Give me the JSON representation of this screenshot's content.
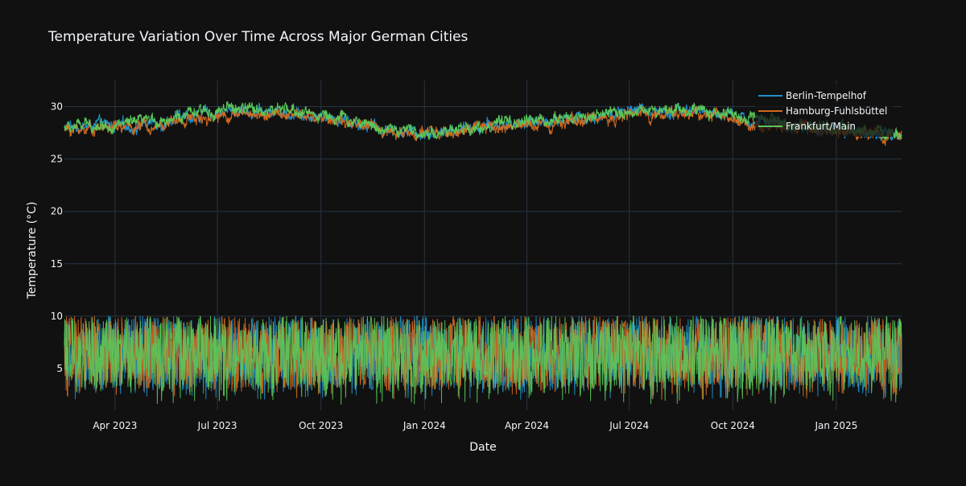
{
  "chart_data": {
    "type": "line",
    "title": "Temperature Variation Over Time Across Major German Cities",
    "xlabel": "Date",
    "ylabel": "Temperature (°C)",
    "x_range": [
      "2023-02-15",
      "2025-02-28"
    ],
    "ylim": [
      1,
      32.5
    ],
    "x_ticks": [
      {
        "date": "2023-04-01",
        "label": "Apr 2023"
      },
      {
        "date": "2023-07-01",
        "label": "Jul 2023"
      },
      {
        "date": "2023-10-01",
        "label": "Oct 2023"
      },
      {
        "date": "2024-01-01",
        "label": "Jan 2024"
      },
      {
        "date": "2024-04-01",
        "label": "Apr 2024"
      },
      {
        "date": "2024-07-01",
        "label": "Jul 2024"
      },
      {
        "date": "2024-10-01",
        "label": "Oct 2024"
      },
      {
        "date": "2025-01-01",
        "label": "Jan 2025"
      }
    ],
    "y_ticks": [
      5,
      10,
      15,
      20,
      25,
      30
    ],
    "grid": true,
    "legend_position": "top-right",
    "colors": {
      "background": "#111111",
      "grid": "#283442",
      "text": "#f2f5fa"
    },
    "series": [
      {
        "name": "Berlin-Tempelhof",
        "color": "#1f8fc9",
        "upper_band_description": "approx 27-30.5",
        "upper_band": [
          [
            "2023-02-15",
            28.0
          ],
          [
            "2023-03-15",
            28.2
          ],
          [
            "2023-04-15",
            28.1
          ],
          [
            "2023-05-15",
            28.6
          ],
          [
            "2023-06-15",
            29.2
          ],
          [
            "2023-07-15",
            29.6
          ],
          [
            "2023-08-15",
            29.5
          ],
          [
            "2023-09-15",
            29.4
          ],
          [
            "2023-10-15",
            28.9
          ],
          [
            "2023-11-15",
            28.1
          ],
          [
            "2023-12-15",
            27.6
          ],
          [
            "2024-01-15",
            27.5
          ],
          [
            "2024-02-15",
            28.0
          ],
          [
            "2024-03-15",
            28.3
          ],
          [
            "2024-04-15",
            28.6
          ],
          [
            "2024-05-15",
            28.9
          ],
          [
            "2024-06-15",
            29.2
          ],
          [
            "2024-07-15",
            29.6
          ],
          [
            "2024-08-15",
            29.7
          ],
          [
            "2024-09-15",
            29.4
          ],
          [
            "2024-10-15",
            28.6
          ],
          [
            "2024-11-15",
            28.2
          ],
          [
            "2024-12-15",
            27.9
          ],
          [
            "2025-01-15",
            27.7
          ],
          [
            "2025-02-28",
            27.3
          ]
        ],
        "lower_band_range": [
          2,
          10
        ]
      },
      {
        "name": "Hamburg-Fuhlsbüttel",
        "color": "#d2691e",
        "upper_band": [
          [
            "2023-02-15",
            27.8
          ],
          [
            "2023-03-15",
            28.0
          ],
          [
            "2023-04-15",
            28.0
          ],
          [
            "2023-05-15",
            28.4
          ],
          [
            "2023-06-15",
            29.0
          ],
          [
            "2023-07-15",
            29.3
          ],
          [
            "2023-08-15",
            29.3
          ],
          [
            "2023-09-15",
            29.1
          ],
          [
            "2023-10-15",
            28.7
          ],
          [
            "2023-11-15",
            28.0
          ],
          [
            "2023-12-15",
            27.5
          ],
          [
            "2024-01-15",
            27.4
          ],
          [
            "2024-02-15",
            27.9
          ],
          [
            "2024-03-15",
            28.1
          ],
          [
            "2024-04-15",
            28.4
          ],
          [
            "2024-05-15",
            28.7
          ],
          [
            "2024-06-15",
            29.0
          ],
          [
            "2024-07-15",
            29.3
          ],
          [
            "2024-08-15",
            29.4
          ],
          [
            "2024-09-15",
            29.2
          ],
          [
            "2024-10-15",
            28.4
          ],
          [
            "2024-11-15",
            28.0
          ],
          [
            "2024-12-15",
            27.8
          ],
          [
            "2025-01-15",
            27.6
          ],
          [
            "2025-02-28",
            27.2
          ]
        ],
        "lower_band_range": [
          2,
          10
        ]
      },
      {
        "name": "Frankfurt/Main",
        "color": "#5ac85a",
        "upper_band": [
          [
            "2023-02-15",
            28.0
          ],
          [
            "2023-03-15",
            28.3
          ],
          [
            "2023-04-15",
            28.3
          ],
          [
            "2023-05-15",
            28.8
          ],
          [
            "2023-06-15",
            29.4
          ],
          [
            "2023-07-15",
            29.8
          ],
          [
            "2023-08-15",
            29.7
          ],
          [
            "2023-09-15",
            29.5
          ],
          [
            "2023-10-15",
            29.0
          ],
          [
            "2023-11-15",
            28.2
          ],
          [
            "2023-12-15",
            27.6
          ],
          [
            "2024-01-15",
            27.5
          ],
          [
            "2024-02-15",
            28.0
          ],
          [
            "2024-03-15",
            28.4
          ],
          [
            "2024-04-15",
            28.7
          ],
          [
            "2024-05-15",
            29.0
          ],
          [
            "2024-06-15",
            29.3
          ],
          [
            "2024-07-15",
            29.7
          ],
          [
            "2024-08-15",
            29.8
          ],
          [
            "2024-09-15",
            29.5
          ],
          [
            "2024-10-15",
            28.7
          ],
          [
            "2024-11-15",
            28.3
          ],
          [
            "2024-12-15",
            27.9
          ],
          [
            "2025-01-15",
            27.7
          ],
          [
            "2025-02-28",
            27.4
          ]
        ],
        "lower_band_range": [
          1.5,
          10
        ]
      }
    ]
  }
}
